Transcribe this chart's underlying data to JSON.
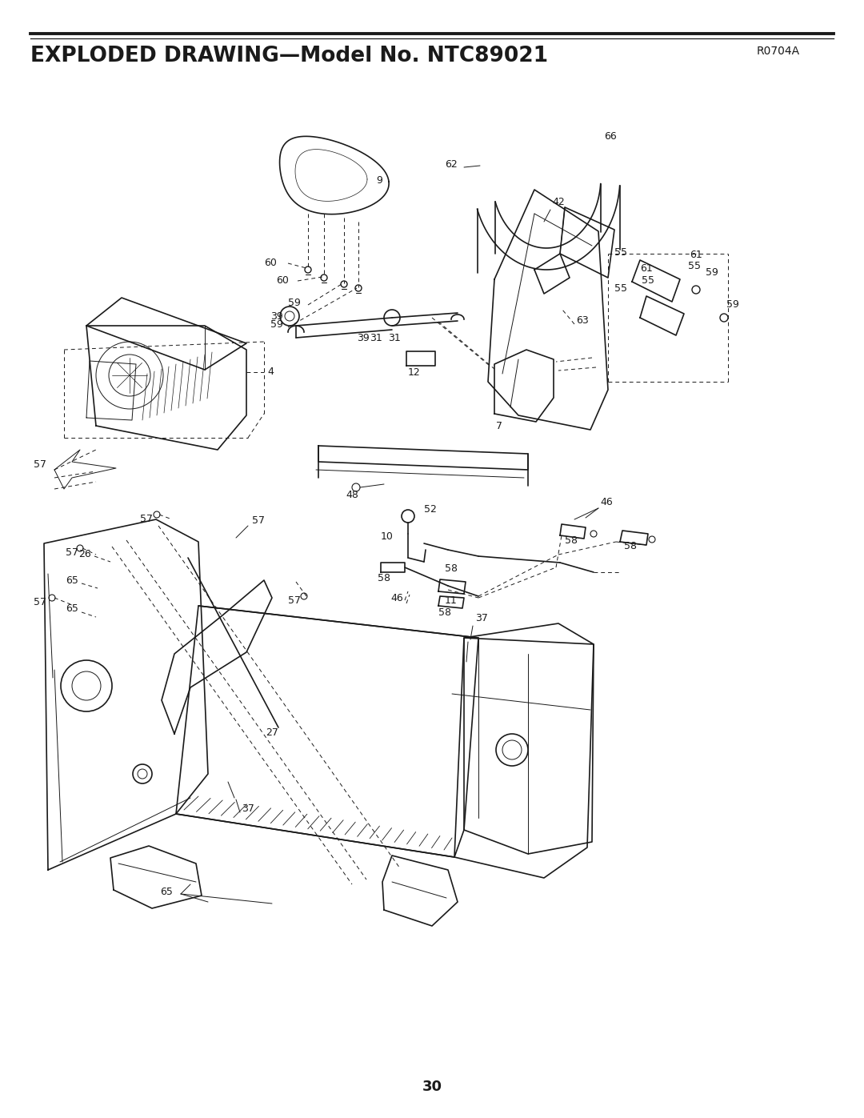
{
  "title": "EXPLODED DRAWING—Model No. NTC89021",
  "revision": "R0704A",
  "page_number": "30",
  "bg_color": "#ffffff",
  "line_color": "#1a1a1a",
  "title_fontsize": 19,
  "rev_fontsize": 10,
  "page_fontsize": 13,
  "label_fontsize": 9
}
